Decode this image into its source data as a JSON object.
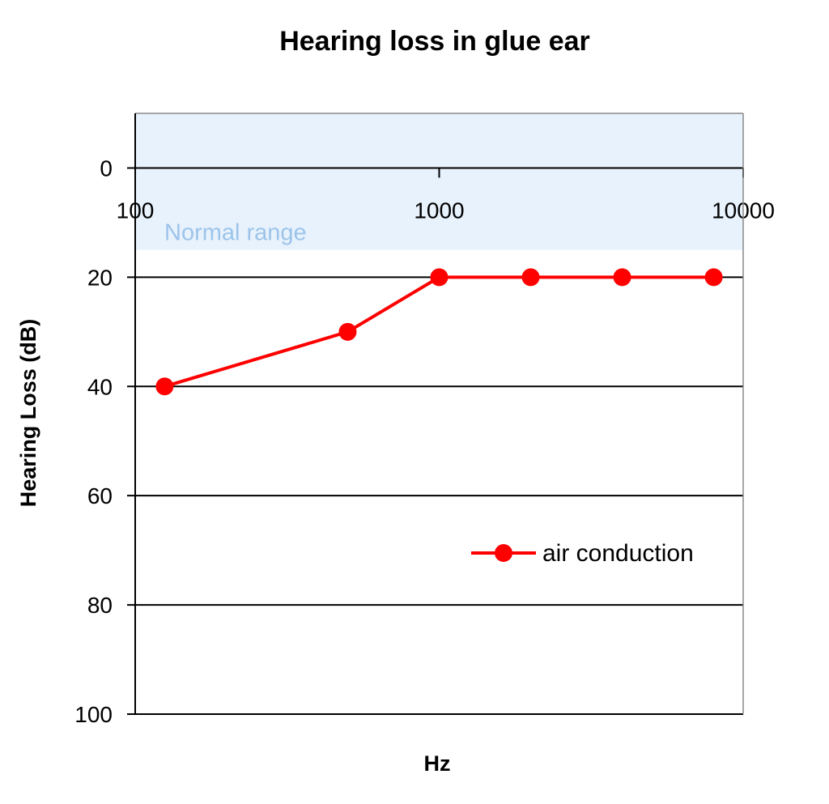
{
  "chart_data": {
    "type": "line",
    "title": "Hearing loss in glue ear",
    "xlabel": "Hz",
    "ylabel": "Hearing Loss (dB)",
    "x_scale": "log",
    "xlim": [
      100,
      10000
    ],
    "x_ticks": [
      100,
      1000,
      10000
    ],
    "x_tick_labels": [
      "100",
      "1000",
      "10000"
    ],
    "ylim": [
      -10,
      100
    ],
    "y_inverted": true,
    "y_ticks": [
      0,
      20,
      40,
      60,
      80,
      100
    ],
    "y_tick_labels": [
      "0",
      "20",
      "40",
      "60",
      "80",
      "100"
    ],
    "grid": true,
    "legend_position": "right",
    "band": {
      "label": "Normal range",
      "from": -10,
      "to": 15,
      "color": "#e8f2fc",
      "label_color": "#9cc4ea"
    },
    "series": [
      {
        "name": "air conduction",
        "color": "#ff0000",
        "x": [
          125,
          500,
          1000,
          2000,
          4000,
          8000
        ],
        "values": [
          40,
          30,
          20,
          20,
          20,
          20
        ]
      }
    ]
  }
}
